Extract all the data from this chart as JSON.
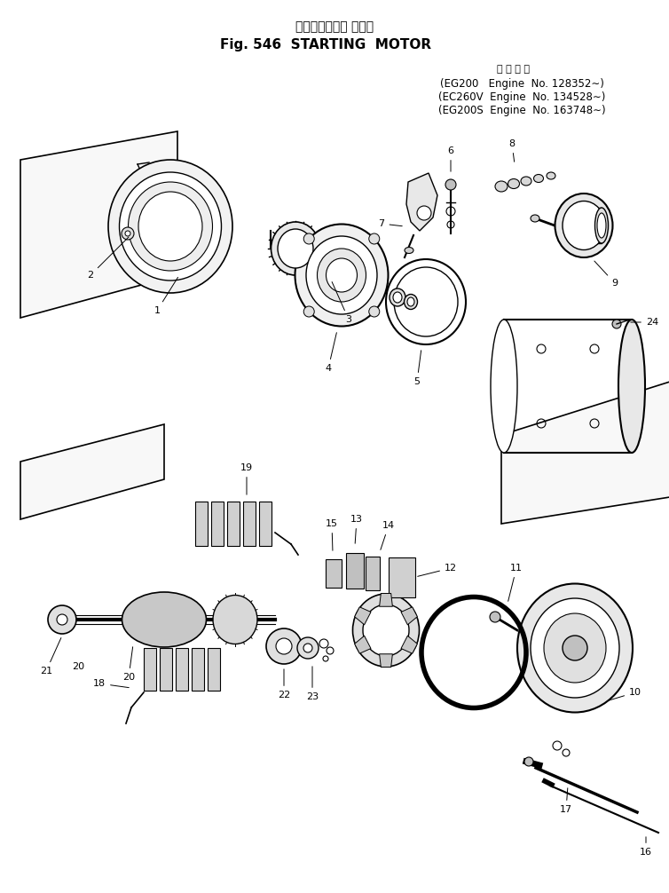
{
  "title_jp": "スターティング モータ",
  "title_en": "Fig. 546  STARTING  MOTOR",
  "applicable_label": "適 用 号 機",
  "engine_lines": [
    "(EG200   Engine  No. 128352∼)",
    "(EC260V  Engine  No. 134528∼)",
    "(EG200S  Engine  No. 163748∼)"
  ],
  "bg_color": "#ffffff",
  "lc": "#000000",
  "figsize": [
    7.54,
    10.06
  ],
  "dpi": 100
}
